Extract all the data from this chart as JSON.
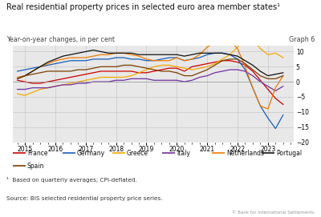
{
  "title": "Real residential property prices in selected euro area member states¹",
  "subtitle": "Year-on-year changes, in per cent",
  "graph_label": "Graph 6",
  "footnote": "¹  Based on quarterly averages; CPI-deflated.",
  "source": "Source: BIS selected residential property price series.",
  "copyright": "© Bank for International Settlements",
  "ylim": [
    -20,
    12
  ],
  "yticks": [
    -20,
    -15,
    -10,
    -5,
    0,
    5,
    10
  ],
  "background_color": "#e8e8e8",
  "series": {
    "France": {
      "color": "#cc0000",
      "data_x": [
        2014.75,
        2015.0,
        2015.25,
        2015.5,
        2015.75,
        2016.0,
        2016.25,
        2016.5,
        2016.75,
        2017.0,
        2017.25,
        2017.5,
        2017.75,
        2018.0,
        2018.25,
        2018.5,
        2018.75,
        2019.0,
        2019.25,
        2019.5,
        2019.75,
        2020.0,
        2020.25,
        2020.5,
        2020.75,
        2021.0,
        2021.25,
        2021.5,
        2021.75,
        2022.0,
        2022.25,
        2022.5,
        2022.75,
        2023.0,
        2023.25,
        2023.5
      ],
      "data_y": [
        0.5,
        0.0,
        -0.5,
        -0.5,
        0.0,
        0.5,
        1.0,
        1.5,
        2.0,
        2.5,
        3.0,
        3.5,
        3.5,
        3.5,
        3.5,
        3.5,
        3.0,
        3.0,
        3.5,
        4.0,
        4.5,
        4.5,
        3.5,
        5.0,
        5.5,
        6.0,
        6.5,
        7.0,
        7.0,
        6.5,
        5.5,
        3.5,
        0.5,
        -2.5,
        -5.5,
        -7.5
      ]
    },
    "Germany": {
      "color": "#1a5eb8",
      "data_x": [
        2014.75,
        2015.0,
        2015.25,
        2015.5,
        2015.75,
        2016.0,
        2016.25,
        2016.5,
        2016.75,
        2017.0,
        2017.25,
        2017.5,
        2017.75,
        2018.0,
        2018.25,
        2018.5,
        2018.75,
        2019.0,
        2019.25,
        2019.5,
        2019.75,
        2020.0,
        2020.25,
        2020.5,
        2020.75,
        2021.0,
        2021.25,
        2021.5,
        2021.75,
        2022.0,
        2022.25,
        2022.5,
        2022.75,
        2023.0,
        2023.25,
        2023.5
      ],
      "data_y": [
        3.5,
        4.0,
        4.5,
        5.0,
        5.5,
        6.0,
        6.5,
        7.0,
        7.0,
        7.0,
        7.5,
        7.5,
        7.5,
        8.0,
        8.0,
        7.5,
        7.5,
        7.0,
        7.0,
        7.5,
        8.0,
        8.0,
        7.0,
        7.5,
        8.0,
        9.0,
        9.5,
        9.5,
        9.0,
        7.5,
        4.0,
        -2.0,
        -8.0,
        -12.0,
        -15.5,
        -11.0
      ]
    },
    "Greece": {
      "color": "#f5a800",
      "data_x": [
        2014.75,
        2015.0,
        2015.25,
        2015.5,
        2015.75,
        2016.0,
        2016.25,
        2016.5,
        2016.75,
        2017.0,
        2017.25,
        2017.5,
        2017.75,
        2018.0,
        2018.25,
        2018.5,
        2018.75,
        2019.0,
        2019.25,
        2019.5,
        2019.75,
        2020.0,
        2020.25,
        2020.5,
        2020.75,
        2021.0,
        2021.25,
        2021.5,
        2021.75,
        2022.0,
        2022.25,
        2022.5,
        2022.75,
        2023.0,
        2023.25,
        2023.5
      ],
      "data_y": [
        -4.0,
        -4.5,
        -3.5,
        -2.5,
        -2.0,
        -1.5,
        -1.0,
        -0.5,
        0.0,
        0.5,
        1.0,
        1.5,
        1.5,
        1.5,
        1.5,
        2.0,
        3.0,
        4.0,
        5.0,
        5.5,
        5.5,
        5.0,
        4.5,
        4.0,
        4.5,
        5.0,
        6.0,
        7.5,
        9.0,
        11.5,
        14.5,
        14.0,
        11.0,
        9.0,
        9.5,
        8.0
      ]
    },
    "Italy": {
      "color": "#7030a0",
      "data_x": [
        2014.75,
        2015.0,
        2015.25,
        2015.5,
        2015.75,
        2016.0,
        2016.25,
        2016.5,
        2016.75,
        2017.0,
        2017.25,
        2017.5,
        2017.75,
        2018.0,
        2018.25,
        2018.5,
        2018.75,
        2019.0,
        2019.25,
        2019.5,
        2019.75,
        2020.0,
        2020.25,
        2020.5,
        2020.75,
        2021.0,
        2021.25,
        2021.5,
        2021.75,
        2022.0,
        2022.25,
        2022.5,
        2022.75,
        2023.0,
        2023.25,
        2023.5
      ],
      "data_y": [
        -2.5,
        -2.5,
        -2.0,
        -2.0,
        -2.0,
        -1.5,
        -1.0,
        -1.0,
        -0.5,
        -0.5,
        0.0,
        0.0,
        0.0,
        0.5,
        0.5,
        1.0,
        1.0,
        1.0,
        0.5,
        0.5,
        0.5,
        0.5,
        0.0,
        0.5,
        1.5,
        2.0,
        3.0,
        3.5,
        4.0,
        4.0,
        3.5,
        2.0,
        0.0,
        -1.5,
        -3.0,
        -1.5
      ]
    },
    "Netherlands": {
      "color": "#f07800",
      "data_x": [
        2014.75,
        2015.0,
        2015.25,
        2015.5,
        2015.75,
        2016.0,
        2016.25,
        2016.5,
        2016.75,
        2017.0,
        2017.25,
        2017.5,
        2017.75,
        2018.0,
        2018.25,
        2018.5,
        2018.75,
        2019.0,
        2019.25,
        2019.5,
        2019.75,
        2020.0,
        2020.25,
        2020.5,
        2020.75,
        2021.0,
        2021.25,
        2021.5,
        2021.75,
        2022.0,
        2022.25,
        2022.5,
        2022.75,
        2023.0,
        2023.25,
        2023.5
      ],
      "data_y": [
        1.5,
        2.0,
        3.5,
        5.0,
        6.0,
        7.0,
        7.5,
        8.0,
        8.0,
        8.0,
        8.5,
        9.0,
        9.0,
        9.5,
        9.5,
        9.0,
        8.5,
        7.5,
        7.0,
        7.0,
        7.0,
        8.0,
        7.0,
        7.5,
        9.0,
        11.5,
        13.0,
        14.0,
        13.5,
        11.0,
        5.0,
        -2.0,
        -8.0,
        -9.0,
        -2.0,
        2.0
      ]
    },
    "Portugal": {
      "color": "#101010",
      "data_x": [
        2014.75,
        2015.0,
        2015.25,
        2015.5,
        2015.75,
        2016.0,
        2016.25,
        2016.5,
        2016.75,
        2017.0,
        2017.25,
        2017.5,
        2017.75,
        2018.0,
        2018.25,
        2018.5,
        2018.75,
        2019.0,
        2019.25,
        2019.5,
        2019.75,
        2020.0,
        2020.25,
        2020.5,
        2020.75,
        2021.0,
        2021.25,
        2021.5,
        2021.75,
        2022.0,
        2022.25,
        2022.5,
        2022.75,
        2023.0,
        2023.25,
        2023.5
      ],
      "data_y": [
        1.0,
        2.0,
        3.5,
        5.0,
        6.5,
        7.5,
        8.5,
        9.0,
        9.5,
        10.0,
        10.5,
        10.0,
        9.5,
        9.5,
        9.5,
        9.5,
        9.0,
        9.0,
        9.0,
        9.0,
        9.0,
        9.0,
        8.5,
        9.0,
        9.5,
        9.5,
        9.5,
        9.5,
        9.0,
        8.5,
        7.0,
        5.5,
        3.5,
        2.0,
        2.5,
        3.0
      ]
    },
    "Spain": {
      "color": "#7b3f00",
      "data_x": [
        2014.75,
        2015.0,
        2015.25,
        2015.5,
        2015.75,
        2016.0,
        2016.25,
        2016.5,
        2016.75,
        2017.0,
        2017.25,
        2017.5,
        2017.75,
        2018.0,
        2018.25,
        2018.5,
        2018.75,
        2019.0,
        2019.25,
        2019.5,
        2019.75,
        2020.0,
        2020.25,
        2020.5,
        2020.75,
        2021.0,
        2021.25,
        2021.5,
        2021.75,
        2022.0,
        2022.25,
        2022.5,
        2022.75,
        2023.0,
        2023.25,
        2023.5
      ],
      "data_y": [
        1.0,
        2.0,
        2.5,
        3.0,
        3.5,
        3.5,
        3.5,
        3.5,
        4.0,
        4.0,
        4.5,
        5.0,
        5.0,
        5.0,
        5.5,
        5.5,
        5.0,
        4.5,
        4.0,
        3.5,
        3.5,
        3.0,
        2.0,
        2.0,
        3.0,
        4.0,
        5.5,
        7.0,
        7.5,
        7.5,
        6.0,
        4.0,
        2.0,
        1.0,
        1.0,
        2.0
      ]
    }
  },
  "legend_order": [
    "France",
    "Germany",
    "Greece",
    "Italy",
    "Netherlands",
    "Portugal",
    "Spain"
  ],
  "xlim": [
    2014.6,
    2023.85
  ],
  "xticks": [
    2015,
    2016,
    2017,
    2018,
    2019,
    2020,
    2021,
    2022,
    2023
  ]
}
